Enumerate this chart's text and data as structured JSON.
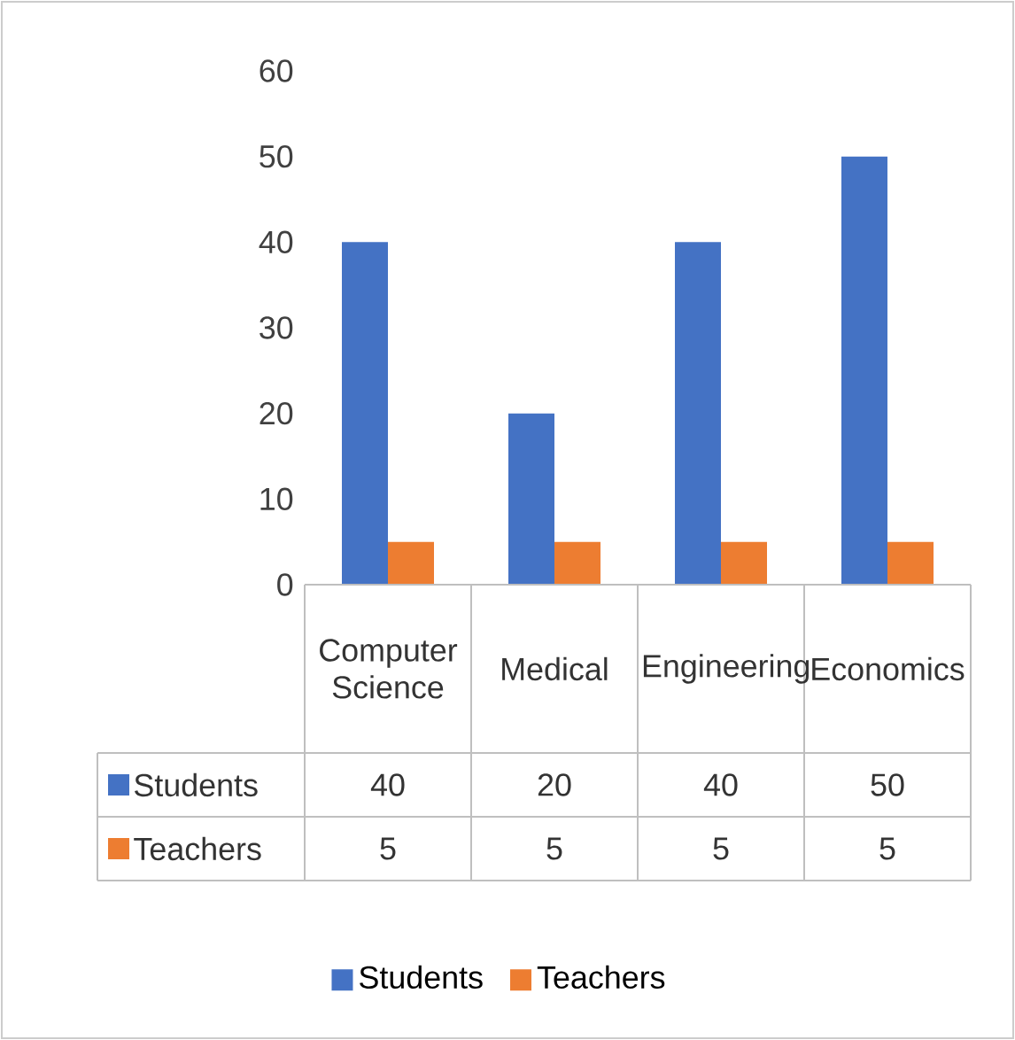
{
  "chart_data": {
    "type": "bar",
    "categories": [
      "Computer Science",
      "Medical",
      "Engineering",
      "Economics"
    ],
    "series": [
      {
        "name": "Students",
        "color": "#4472c4",
        "values": [
          40,
          20,
          40,
          50
        ]
      },
      {
        "name": "Teachers",
        "color": "#ed7d31",
        "values": [
          5,
          5,
          5,
          5
        ]
      }
    ],
    "ylim": [
      0,
      60
    ],
    "yticks": [
      0,
      10,
      20,
      30,
      40,
      50,
      60
    ],
    "data_labels": true,
    "legend": "bottom"
  }
}
